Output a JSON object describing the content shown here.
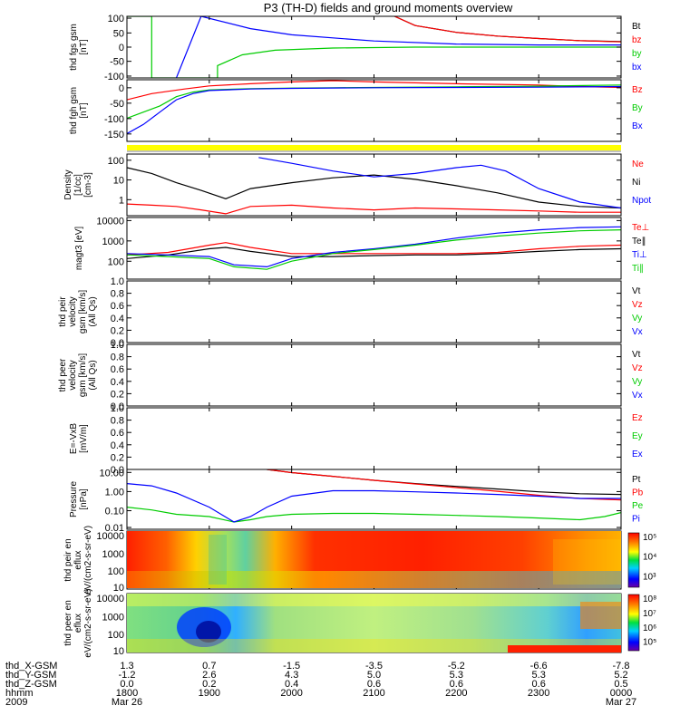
{
  "title": "P3 (TH-D) fields and ground moments overview",
  "time_axis": {
    "tick_labels": [
      "1800",
      "1900",
      "2000",
      "2100",
      "2200",
      "2300",
      "0000"
    ],
    "date_start": "Mar 26",
    "date_end": "Mar 27",
    "row_labels": [
      "thd_X-GSM",
      "thd_Y-GSM",
      "thd_Z-GSM",
      "hhmm",
      "2009"
    ],
    "x_gsm": [
      "1.3",
      "0.7",
      "-1.5",
      "-3.5",
      "-5.2",
      "-6.6",
      "-7.8"
    ],
    "y_gsm": [
      "-1.2",
      "2.6",
      "4.3",
      "5.0",
      "5.3",
      "5.3",
      "5.2"
    ],
    "z_gsm": [
      "0.0",
      "0.2",
      "0.4",
      "0.6",
      "0.6",
      "0.6",
      "0.5"
    ]
  },
  "colorbars": {
    "ion": [
      "10⁵",
      "10⁴",
      "10³"
    ],
    "electron": [
      "10⁸",
      "10⁷",
      "10⁶",
      "10⁵"
    ]
  },
  "chart_data": [
    {
      "type": "line",
      "panel": "fgs",
      "ylabel": "thd fgs gsm [nT]",
      "yticks": [
        "100",
        "50",
        "0",
        "-50",
        "-100"
      ],
      "ylim": [
        -100,
        100
      ],
      "x_range": [
        "1800",
        "0000"
      ],
      "series": [
        {
          "name": "Bt",
          "color": "#000000",
          "x": [
            3.25,
            3.5,
            4,
            4.5,
            5,
            5.5,
            6
          ],
          "y": [
            100,
            70,
            48,
            36,
            28,
            21,
            18
          ]
        },
        {
          "name": "bz",
          "color": "#ff0000",
          "x": [
            3.25,
            3.5,
            4,
            4.5,
            5,
            5.5,
            6
          ],
          "y": [
            100,
            70,
            48,
            36,
            28,
            21,
            17
          ]
        },
        {
          "name": "by",
          "color": "#00cc00",
          "x": [
            0,
            0.3,
            0.3,
            1.1,
            1.1,
            1.4,
            1.8,
            2.5,
            3.5,
            6
          ],
          "y": [
            100,
            100,
            -100,
            -100,
            -60,
            -25,
            -10,
            -3,
            0,
            0
          ]
        },
        {
          "name": "bx",
          "color": "#0000ff",
          "x": [
            0.6,
            0.9,
            1.5,
            2,
            3,
            4,
            5,
            6
          ],
          "y": [
            -100,
            100,
            60,
            40,
            20,
            10,
            7,
            7
          ]
        }
      ]
    },
    {
      "type": "line",
      "panel": "fgh",
      "ylabel": "thd fgh gsm [nT]",
      "yticks": [
        "0",
        "-50",
        "-100",
        "-150"
      ],
      "ylim": [
        -175,
        25
      ],
      "x_range": [
        "1800",
        "0000"
      ],
      "series": [
        {
          "name": "Bz",
          "color": "#ff0000",
          "x": [
            0,
            0.3,
            0.7,
            1,
            1.5,
            2,
            2.5,
            3,
            4,
            5,
            5.5,
            6
          ],
          "y": [
            -40,
            -20,
            -5,
            5,
            12,
            18,
            22,
            18,
            12,
            8,
            3,
            0
          ]
        },
        {
          "name": "By",
          "color": "#00cc00",
          "x": [
            0,
            0.2,
            0.4,
            0.6,
            0.8,
            1,
            1.5,
            2,
            3,
            4,
            5,
            6
          ],
          "y": [
            -100,
            -80,
            -60,
            -30,
            -15,
            -8,
            -4,
            -2,
            0,
            2,
            4,
            8
          ]
        },
        {
          "name": "Bx",
          "color": "#0000ff",
          "x": [
            0,
            0.2,
            0.4,
            0.6,
            0.8,
            1,
            1.5,
            2,
            3,
            4,
            5,
            6
          ],
          "y": [
            -150,
            -120,
            -80,
            -40,
            -20,
            -10,
            -5,
            -3,
            -1,
            0,
            1,
            3
          ]
        }
      ]
    },
    {
      "type": "line",
      "panel": "density",
      "ylabel": "Density [1/cc] [cm-3]",
      "yticks": [
        "100",
        "10",
        "1"
      ],
      "ylim": [
        0.2,
        300
      ],
      "scale": "log",
      "x_range": [
        "1800",
        "0000"
      ],
      "series": [
        {
          "name": "Ne",
          "color": "#ff0000",
          "x": [
            0,
            0.3,
            0.6,
            0.9,
            1.2,
            1.5,
            2,
            2.5,
            3,
            3.5,
            4,
            4.5,
            5,
            5.5,
            6
          ],
          "y": [
            0.8,
            0.7,
            0.6,
            0.4,
            0.25,
            0.6,
            0.7,
            0.5,
            0.4,
            0.5,
            0.45,
            0.4,
            0.35,
            0.3,
            0.3
          ]
        },
        {
          "name": "Ni",
          "color": "#000000",
          "x": [
            0,
            0.3,
            0.6,
            0.9,
            1.2,
            1.5,
            2,
            2.5,
            3,
            3.5,
            4,
            4.5,
            5,
            5.5,
            6
          ],
          "y": [
            60,
            30,
            10,
            4,
            1.5,
            5,
            10,
            18,
            25,
            15,
            7,
            3,
            1,
            0.6,
            0.5
          ]
        },
        {
          "name": "Npot",
          "color": "#0000ff",
          "x": [
            1.6,
            2,
            2.5,
            3,
            3.5,
            4,
            4.3,
            4.6,
            5,
            5.5,
            6
          ],
          "y": [
            200,
            100,
            40,
            20,
            30,
            60,
            80,
            40,
            5,
            1,
            0.5
          ]
        }
      ]
    },
    {
      "type": "line",
      "panel": "temperature",
      "ylabel": "magt3 [eV]",
      "yticks": [
        "10000",
        "1000",
        "100"
      ],
      "ylim": [
        20,
        20000
      ],
      "scale": "log",
      "x_range": [
        "1800",
        "0000"
      ],
      "series": [
        {
          "name": "Te⊥",
          "color": "#ff0000",
          "x": [
            0,
            0.5,
            1,
            1.2,
            1.5,
            2,
            2.5,
            3,
            3.5,
            4,
            4.5,
            5,
            5.5,
            6
          ],
          "y": [
            300,
            400,
            900,
            1200,
            700,
            350,
            350,
            350,
            350,
            350,
            400,
            600,
            800,
            900
          ]
        },
        {
          "name": "Te∥",
          "color": "#000000",
          "x": [
            0,
            0.5,
            1,
            1.2,
            1.5,
            2,
            2.5,
            3,
            3.5,
            4,
            4.5,
            5,
            5.5,
            6
          ],
          "y": [
            200,
            300,
            600,
            700,
            450,
            250,
            250,
            280,
            300,
            300,
            350,
            450,
            550,
            600
          ]
        },
        {
          "name": "Ti⊥",
          "color": "#0000ff",
          "x": [
            0,
            0.5,
            1,
            1.3,
            1.7,
            2,
            2.5,
            3,
            3.5,
            4,
            4.5,
            5,
            5.5,
            6
          ],
          "y": [
            350,
            300,
            250,
            100,
            80,
            200,
            400,
            600,
            1000,
            2000,
            3500,
            5000,
            6500,
            7000
          ]
        },
        {
          "name": "Ti∥",
          "color": "#00cc00",
          "x": [
            0,
            0.5,
            1,
            1.3,
            1.7,
            2,
            2.5,
            3,
            3.5,
            4,
            4.5,
            5,
            5.5,
            6
          ],
          "y": [
            300,
            250,
            200,
            80,
            60,
            150,
            350,
            550,
            900,
            1600,
            2500,
            3500,
            4500,
            5000
          ]
        }
      ]
    },
    {
      "type": "line",
      "panel": "peir_velocity",
      "ylabel": "thd peir velocity gsm [km/s] (All Qs)",
      "yticks": [
        "1.0",
        "0.8",
        "0.6",
        "0.4",
        "0.2",
        "0.0"
      ],
      "ylim": [
        0,
        1
      ],
      "x_range": [
        "1800",
        "0000"
      ],
      "series": [
        {
          "name": "Vt",
          "color": "#000000",
          "x": [],
          "y": []
        },
        {
          "name": "Vz",
          "color": "#ff0000",
          "x": [],
          "y": []
        },
        {
          "name": "Vy",
          "color": "#00cc00",
          "x": [],
          "y": []
        },
        {
          "name": "Vx",
          "color": "#0000ff",
          "x": [],
          "y": []
        }
      ]
    },
    {
      "type": "line",
      "panel": "peer_velocity",
      "ylabel": "thd peer velocity gsm [km/s] (All Qs)",
      "yticks": [
        "1.0",
        "0.8",
        "0.6",
        "0.4",
        "0.2",
        "0.0"
      ],
      "ylim": [
        0,
        1
      ],
      "x_range": [
        "1800",
        "0000"
      ],
      "series": [
        {
          "name": "Vt",
          "color": "#000000",
          "x": [],
          "y": []
        },
        {
          "name": "Vz",
          "color": "#ff0000",
          "x": [],
          "y": []
        },
        {
          "name": "Vy",
          "color": "#00cc00",
          "x": [],
          "y": []
        },
        {
          "name": "Vx",
          "color": "#0000ff",
          "x": [],
          "y": []
        }
      ]
    },
    {
      "type": "line",
      "panel": "efield",
      "ylabel": "E=-VxB [mV/m]",
      "yticks": [
        "1.0",
        "0.8",
        "0.6",
        "0.4",
        "0.2",
        "0.0"
      ],
      "ylim": [
        0,
        1
      ],
      "x_range": [
        "1800",
        "0000"
      ],
      "series": [
        {
          "name": "Ez",
          "color": "#ff0000",
          "x": [],
          "y": []
        },
        {
          "name": "Ey",
          "color": "#00cc00",
          "x": [],
          "y": []
        },
        {
          "name": "Ex",
          "color": "#0000ff",
          "x": [],
          "y": []
        }
      ]
    },
    {
      "type": "line",
      "panel": "pressure",
      "ylabel": "Pressure [nPa]",
      "yticks": [
        "10.00",
        "1.00",
        "0.10",
        "0.01"
      ],
      "ylim": [
        0.006,
        12
      ],
      "scale": "log",
      "x_range": [
        "1800",
        "0000"
      ],
      "series": [
        {
          "name": "Pt",
          "color": "#000000",
          "x": [
            1.7,
            2,
            2.5,
            3,
            3.5,
            4,
            4.5,
            5,
            5.5,
            6
          ],
          "y": [
            12,
            8,
            5,
            3,
            2,
            1.4,
            1,
            0.7,
            0.55,
            0.5
          ]
        },
        {
          "name": "Pb",
          "color": "#ff0000",
          "x": [
            1.7,
            2,
            2.5,
            3,
            3.5,
            4,
            4.5,
            5,
            5.5,
            6
          ],
          "y": [
            12,
            8,
            5,
            3,
            1.9,
            1.2,
            0.75,
            0.45,
            0.3,
            0.25
          ]
        },
        {
          "name": "Pe",
          "color": "#00cc00",
          "x": [
            0,
            0.3,
            0.6,
            1,
            1.3,
            1.5,
            1.7,
            2,
            2.5,
            3,
            3.5,
            4,
            4.5,
            5,
            5.5,
            5.8,
            6
          ],
          "y": [
            0.1,
            0.07,
            0.04,
            0.03,
            0.015,
            0.02,
            0.03,
            0.04,
            0.045,
            0.045,
            0.04,
            0.035,
            0.03,
            0.025,
            0.02,
            0.03,
            0.05
          ]
        },
        {
          "name": "Pi",
          "color": "#0000ff",
          "x": [
            0,
            0.3,
            0.6,
            1,
            1.3,
            1.5,
            1.7,
            2,
            2.5,
            3,
            3.5,
            4,
            4.5,
            5,
            5.5,
            6
          ],
          "y": [
            2,
            1.5,
            0.6,
            0.1,
            0.015,
            0.03,
            0.1,
            0.4,
            0.8,
            0.8,
            0.7,
            0.6,
            0.5,
            0.4,
            0.3,
            0.3
          ]
        }
      ]
    },
    {
      "type": "heatmap",
      "panel": "ion_efllux",
      "ylabel": "thd peir en eflux eV/(cm2-s-sr-eV)",
      "yticks": [
        "10000",
        "1000",
        "100",
        "10"
      ],
      "ylim": [
        7,
        20000
      ],
      "scale": "log",
      "x_range": [
        "1800",
        "0000"
      ],
      "colorbar_ticks": [
        "10⁵",
        "10⁴",
        "10³"
      ]
    },
    {
      "type": "heatmap",
      "panel": "electron_eflux",
      "ylabel": "thd peer en eflux eV/(cm2-s-sr-eV)",
      "yticks": [
        "10000",
        "1000",
        "100",
        "10"
      ],
      "ylim": [
        7,
        20000
      ],
      "scale": "log",
      "x_range": [
        "1800",
        "0000"
      ],
      "colorbar_ticks": [
        "10⁸",
        "10⁷",
        "10⁶",
        "10⁵"
      ]
    }
  ]
}
